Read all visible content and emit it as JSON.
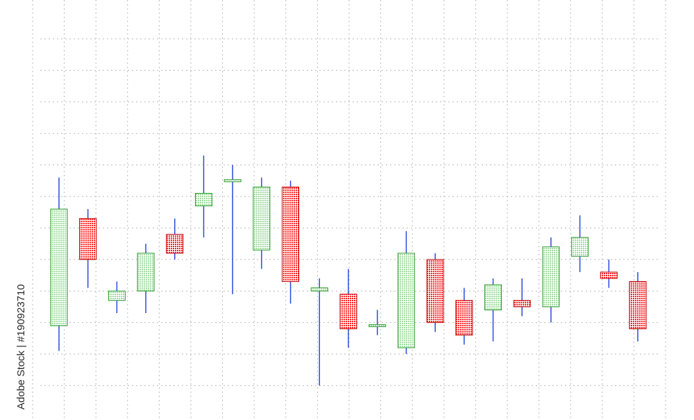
{
  "watermark": {
    "side_text": "Adobe Stock | #190923710"
  },
  "colors": {
    "up_fill": "#9fdc9f",
    "up_stroke": "#2e9a2e",
    "down_fill": "#ff2020",
    "down_stroke": "#c20000",
    "wick": "#2a4bd7",
    "grid": "#b9b9b9"
  },
  "chart_data": {
    "type": "candlestick",
    "title": "",
    "xlabel": "",
    "ylabel": "",
    "grid": true,
    "ylim": [
      0,
      11
    ],
    "candles": [
      {
        "open": 1.9,
        "close": 5.6,
        "high": 6.6,
        "low": 1.1
      },
      {
        "open": 5.3,
        "close": 4.0,
        "high": 5.6,
        "low": 3.1
      },
      {
        "open": 2.7,
        "close": 3.0,
        "high": 3.3,
        "low": 2.3
      },
      {
        "open": 3.0,
        "close": 4.2,
        "high": 4.5,
        "low": 2.3
      },
      {
        "open": 4.8,
        "close": 4.2,
        "high": 5.3,
        "low": 4.0
      },
      {
        "open": 5.7,
        "close": 6.1,
        "high": 7.3,
        "low": 4.7
      },
      {
        "open": 6.5,
        "close": 6.5,
        "high": 7.0,
        "low": 2.9
      },
      {
        "open": 4.3,
        "close": 6.3,
        "high": 6.6,
        "low": 3.7
      },
      {
        "open": 6.3,
        "close": 3.3,
        "high": 6.5,
        "low": 2.6
      },
      {
        "open": 3.0,
        "close": 3.1,
        "high": 3.4,
        "low": 0.0
      },
      {
        "open": 2.9,
        "close": 1.8,
        "high": 3.7,
        "low": 1.2
      },
      {
        "open": 1.9,
        "close": 1.9,
        "high": 2.4,
        "low": 1.6
      },
      {
        "open": 1.2,
        "close": 4.2,
        "high": 4.9,
        "low": 1.0
      },
      {
        "open": 4.0,
        "close": 2.0,
        "high": 4.2,
        "low": 1.7
      },
      {
        "open": 2.7,
        "close": 1.6,
        "high": 3.1,
        "low": 1.3
      },
      {
        "open": 2.4,
        "close": 3.2,
        "high": 3.4,
        "low": 1.4
      },
      {
        "open": 2.7,
        "close": 2.5,
        "high": 3.4,
        "low": 2.2
      },
      {
        "open": 2.5,
        "close": 4.4,
        "high": 4.7,
        "low": 2.0
      },
      {
        "open": 4.1,
        "close": 4.7,
        "high": 5.4,
        "low": 3.6
      },
      {
        "open": 3.6,
        "close": 3.4,
        "high": 4.0,
        "low": 3.1
      },
      {
        "open": 3.3,
        "close": 1.8,
        "high": 3.6,
        "low": 1.4
      }
    ]
  }
}
